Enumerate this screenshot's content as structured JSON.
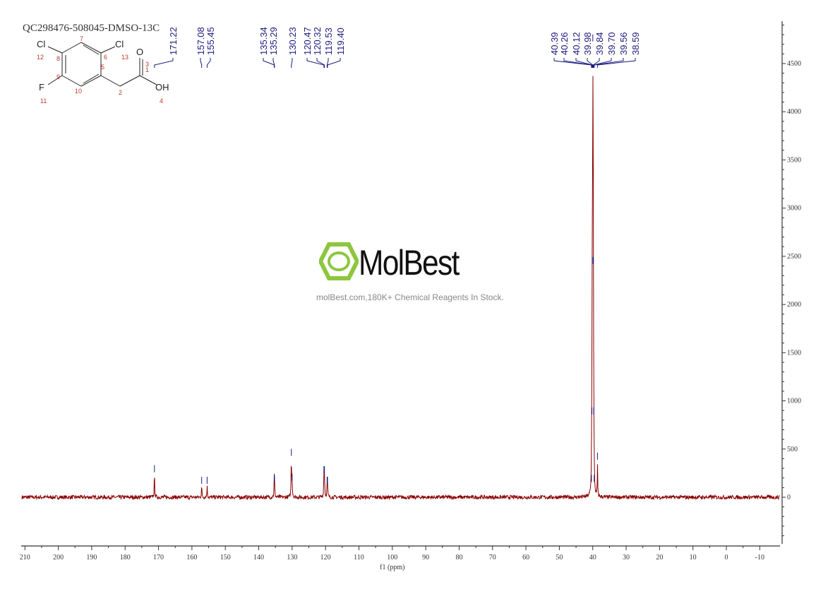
{
  "title": "QC298476-508045-DMSO-13C",
  "watermark": {
    "brand": "MolBest",
    "tagline": "molBest.com,180K+ Chemical Reagents In Stock.",
    "color": "#8dc63f"
  },
  "structure": {
    "atoms": [
      "Cl",
      "Cl",
      "O",
      "OH",
      "F"
    ],
    "numbers": [
      "1",
      "2",
      "3",
      "4",
      "5",
      "6",
      "7",
      "8",
      "9",
      "10",
      "11",
      "12",
      "13"
    ]
  },
  "chart_data": {
    "type": "line",
    "title": "",
    "xlabel": "f1 (ppm)",
    "ylabel": "",
    "xlim": [
      210,
      -13
    ],
    "ylim": [
      -500,
      4900
    ],
    "x_reversed": true,
    "grid": false,
    "y_axis_position": "right",
    "line_color": "#8b0000",
    "label_color": "#1a1a80",
    "x_ticks": [
      210,
      200,
      190,
      180,
      170,
      160,
      150,
      140,
      130,
      120,
      110,
      100,
      90,
      80,
      70,
      60,
      50,
      40,
      30,
      20,
      10,
      0,
      -10
    ],
    "y_ticks": [
      0,
      500,
      1000,
      1500,
      2000,
      2500,
      3000,
      3500,
      4000,
      4500
    ],
    "peaks": [
      {
        "ppm": 171.22,
        "height": 230
      },
      {
        "ppm": 157.08,
        "height": 110
      },
      {
        "ppm": 155.45,
        "height": 110
      },
      {
        "ppm": 135.34,
        "height": 140
      },
      {
        "ppm": 135.29,
        "height": 130
      },
      {
        "ppm": 130.23,
        "height": 400
      },
      {
        "ppm": 130.0,
        "height": 140
      },
      {
        "ppm": 120.47,
        "height": 220
      },
      {
        "ppm": 120.32,
        "height": 220
      },
      {
        "ppm": 119.53,
        "height": 110
      },
      {
        "ppm": 119.4,
        "height": 110
      },
      {
        "ppm": 40.39,
        "height": 130
      },
      {
        "ppm": 40.26,
        "height": 830
      },
      {
        "ppm": 40.12,
        "height": 2390
      },
      {
        "ppm": 39.98,
        "height": 4900
      },
      {
        "ppm": 39.84,
        "height": 2390
      },
      {
        "ppm": 39.7,
        "height": 830
      },
      {
        "ppm": 39.56,
        "height": 130
      },
      {
        "ppm": 38.59,
        "height": 360
      }
    ],
    "peak_labels": [
      "171.22",
      "157.08",
      "155.45",
      "135.34",
      "135.29",
      "130.23",
      "120.47",
      "120.32",
      "119.53",
      "119.40",
      "40.39",
      "40.26",
      "40.12",
      "39.98",
      "39.84",
      "39.70",
      "39.56",
      "38.59"
    ]
  }
}
